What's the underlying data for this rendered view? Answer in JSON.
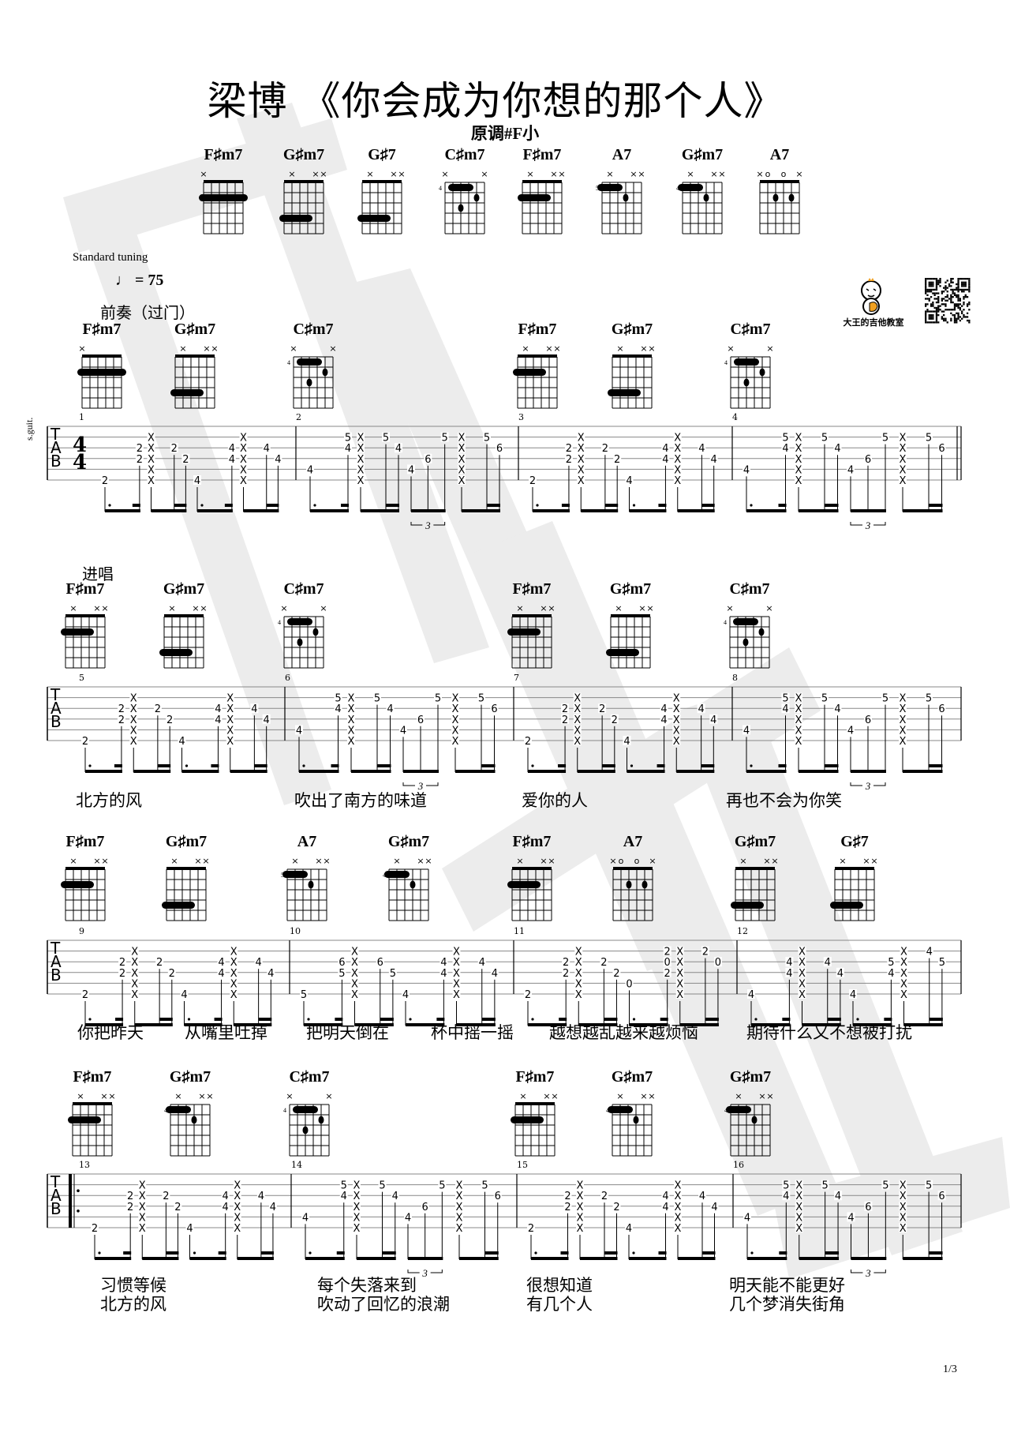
{
  "header": {
    "title": "梁博 《你会成为你想的那个人》",
    "key": "原调#F小",
    "tuning": "Standard tuning",
    "tempo_value": "= 75",
    "logo_text": "大王的吉他教室",
    "instrument": "s.guit.",
    "time_signature": [
      "4",
      "4"
    ]
  },
  "colors": {
    "ink": "#000000",
    "watermark": "#ececec",
    "logo_accent": "#f0a020"
  },
  "chord_chart": [
    {
      "name": "F♯m7",
      "marks": "x.....",
      "start": "",
      "barres": [
        [
          2,
          6,
          1
        ]
      ],
      "dots": []
    },
    {
      "name": "G♯m7",
      "marks": ".x..xx",
      "start": "",
      "barres": [
        [
          4,
          6,
          3
        ]
      ],
      "dots": []
    },
    {
      "name": "G♯7",
      "marks": ".x..xx",
      "start": "",
      "barres": [
        [
          4,
          6,
          3
        ]
      ],
      "dots": []
    },
    {
      "name": "C♯m7",
      "marks": "x....x",
      "start": "4",
      "barres": [
        [
          1,
          5,
          3
        ]
      ],
      "dots": [
        [
          2,
          2
        ],
        [
          3,
          4
        ]
      ]
    },
    {
      "name": "F♯m7",
      "marks": ".x..xx",
      "start": "",
      "barres": [
        [
          2,
          6,
          3
        ]
      ],
      "dots": []
    },
    {
      "name": "A7",
      "marks": ".x..xx",
      "start": "5",
      "barres": [
        [
          1,
          6,
          4
        ]
      ],
      "dots": [
        [
          2,
          3
        ]
      ]
    },
    {
      "name": "G♯m7",
      "marks": ".x..xx",
      "start": "4",
      "barres": [
        [
          1,
          6,
          4
        ]
      ],
      "dots": [
        [
          2,
          3
        ]
      ]
    },
    {
      "name": "A7",
      "marks": "xo.o.x",
      "start": "",
      "barres": [],
      "dots": [
        [
          2,
          4
        ],
        [
          2,
          2
        ]
      ]
    }
  ],
  "systems": [
    {
      "section": "前奏（过门）",
      "chords": [
        {
          "name": "F♯m7",
          "marks": "x.....",
          "start": "",
          "barres": [
            [
              2,
              6,
              1
            ]
          ],
          "dots": []
        },
        {
          "name": "G♯m7",
          "marks": ".x..xx",
          "start": "",
          "barres": [
            [
              4,
              6,
              3
            ]
          ],
          "dots": []
        },
        {
          "name": "C♯m7",
          "marks": "x....x",
          "start": "4",
          "barres": [
            [
              1,
              5,
              3
            ]
          ],
          "dots": [
            [
              2,
              2
            ],
            [
              3,
              4
            ]
          ]
        },
        {
          "name": "F♯m7",
          "marks": ".x..xx",
          "start": "",
          "barres": [
            [
              2,
              6,
              3
            ]
          ],
          "dots": []
        },
        {
          "name": "G♯m7",
          "marks": ".x..xx",
          "start": "",
          "barres": [
            [
              4,
              6,
              3
            ]
          ],
          "dots": []
        },
        {
          "name": "C♯m7",
          "marks": "x....x",
          "start": "4",
          "barres": [
            [
              1,
              5,
              3
            ]
          ],
          "dots": [
            [
              2,
              2
            ],
            [
              3,
              4
            ]
          ]
        }
      ],
      "measures": [
        {
          "number": "1",
          "notes": [
            "6:2",
            "3:2 4:2",
            "X",
            "3:2",
            "4:2",
            "6:4",
            "3:4 4:4",
            "X",
            "3:4",
            "4:4"
          ],
          "groups": [
            "2",
            "3",
            "2",
            "3"
          ]
        },
        {
          "number": "2",
          "notes": [
            "5:4",
            "2:5 3:4",
            "X",
            "2:5",
            "3:4",
            "5:4",
            "4:6",
            "2:5",
            "X",
            "2:5",
            "3:6"
          ],
          "groups": [
            "2",
            "3",
            "3t",
            "3"
          ]
        },
        {
          "number": "3",
          "notes": [
            "6:2",
            "3:2 4:2",
            "X",
            "3:2",
            "4:2",
            "6:4",
            "3:4 4:4",
            "X",
            "3:4",
            "4:4"
          ],
          "groups": [
            "2",
            "3",
            "2",
            "3"
          ]
        },
        {
          "number": "4",
          "notes": [
            "5:4",
            "2:5 3:4",
            "X",
            "2:5",
            "3:4",
            "5:4",
            "4:6",
            "2:5",
            "X",
            "2:5",
            "3:6"
          ],
          "groups": [
            "2",
            "3",
            "3t",
            "3"
          ]
        }
      ],
      "lyrics": []
    },
    {
      "section": "进唱",
      "chords": [
        {
          "name": "F♯m7",
          "marks": ".x..xx",
          "start": "",
          "barres": [
            [
              2,
              6,
              3
            ]
          ],
          "dots": []
        },
        {
          "name": "G♯m7",
          "marks": ".x..xx",
          "start": "",
          "barres": [
            [
              4,
              6,
              3
            ]
          ],
          "dots": []
        },
        {
          "name": "C♯m7",
          "marks": "x....x",
          "start": "4",
          "barres": [
            [
              1,
              5,
              3
            ]
          ],
          "dots": [
            [
              2,
              2
            ],
            [
              3,
              4
            ]
          ]
        },
        {
          "name": "F♯m7",
          "marks": ".x..xx",
          "start": "",
          "barres": [
            [
              2,
              6,
              3
            ]
          ],
          "dots": []
        },
        {
          "name": "G♯m7",
          "marks": ".x..xx",
          "start": "",
          "barres": [
            [
              4,
              6,
              3
            ]
          ],
          "dots": []
        },
        {
          "name": "C♯m7",
          "marks": "x....x",
          "start": "4",
          "barres": [
            [
              1,
              5,
              3
            ]
          ],
          "dots": [
            [
              2,
              2
            ],
            [
              3,
              4
            ]
          ]
        }
      ],
      "measures": [
        {
          "number": "5",
          "notes": [
            "6:2",
            "3:2 4:2",
            "X",
            "3:2",
            "4:2",
            "6:4",
            "3:4 4:4",
            "X",
            "3:4",
            "4:4"
          ],
          "groups": [
            "2",
            "3",
            "2",
            "3"
          ]
        },
        {
          "number": "6",
          "notes": [
            "5:4",
            "2:5 3:4",
            "X",
            "2:5",
            "3:4",
            "5:4",
            "4:6",
            "2:5",
            "X",
            "2:5",
            "3:6"
          ],
          "groups": [
            "2",
            "3",
            "3t",
            "3"
          ]
        },
        {
          "number": "7",
          "notes": [
            "6:2",
            "3:2 4:2",
            "X",
            "3:2",
            "4:2",
            "6:4",
            "3:4 4:4",
            "X",
            "3:4",
            "4:4"
          ],
          "groups": [
            "2",
            "3",
            "2",
            "3"
          ]
        },
        {
          "number": "8",
          "notes": [
            "5:4",
            "2:5 3:4",
            "X",
            "2:5",
            "3:4",
            "5:4",
            "4:6",
            "2:5",
            "X",
            "2:5",
            "3:6"
          ],
          "groups": [
            "2",
            "3",
            "3t",
            "3"
          ]
        }
      ],
      "lyrics": [
        [
          "北方的风"
        ],
        [
          "吹出了南方的味道"
        ],
        [
          "爱你的人"
        ],
        [
          "再也不会为你笑"
        ]
      ]
    },
    {
      "section": "",
      "chords": [
        {
          "name": "F♯m7",
          "marks": ".x..xx",
          "start": "",
          "barres": [
            [
              2,
              6,
              3
            ]
          ],
          "dots": []
        },
        {
          "name": "G♯m7",
          "marks": ".x..xx",
          "start": "",
          "barres": [
            [
              4,
              6,
              3
            ]
          ],
          "dots": []
        },
        {
          "name": "A7",
          "marks": ".x..xx",
          "start": "5",
          "barres": [
            [
              1,
              6,
              4
            ]
          ],
          "dots": [
            [
              2,
              3
            ]
          ]
        },
        {
          "name": "G♯m7",
          "marks": ".x..xx",
          "start": "4",
          "barres": [
            [
              1,
              6,
              4
            ]
          ],
          "dots": [
            [
              2,
              3
            ]
          ]
        },
        {
          "name": "F♯m7",
          "marks": ".x..xx",
          "start": "",
          "barres": [
            [
              2,
              6,
              3
            ]
          ],
          "dots": []
        },
        {
          "name": "A7",
          "marks": "xo.o.x",
          "start": "",
          "barres": [],
          "dots": [
            [
              2,
              4
            ],
            [
              2,
              2
            ]
          ]
        },
        {
          "name": "G♯m7",
          "marks": ".x..xx",
          "start": "",
          "barres": [
            [
              4,
              6,
              3
            ]
          ],
          "dots": []
        },
        {
          "name": "G♯7",
          "marks": ".x..xx",
          "start": "",
          "barres": [
            [
              4,
              6,
              3
            ]
          ],
          "dots": []
        }
      ],
      "measures": [
        {
          "number": "9",
          "notes": [
            "6:2",
            "3:2 4:2",
            "X",
            "3:2",
            "4:2",
            "6:4",
            "3:4 4:4",
            "X",
            "3:4",
            "4:4"
          ],
          "groups": [
            "2",
            "3",
            "2",
            "3"
          ]
        },
        {
          "number": "10",
          "notes": [
            "6:5",
            "3:6 4:5",
            "X",
            "3:6",
            "4:5",
            "6:4",
            "3:4 4:4",
            "X",
            "3:4",
            "4:4"
          ],
          "groups": [
            "2",
            "3",
            "2",
            "3"
          ]
        },
        {
          "number": "11",
          "notes": [
            "6:2",
            "3:2 4:2",
            "X",
            "3:2",
            "4:2",
            "5:0",
            "2:2 3:0 4:2",
            "X",
            "2:2",
            "3:0"
          ],
          "groups": [
            "2",
            "3",
            "2",
            "3"
          ]
        },
        {
          "number": "12",
          "notes": [
            "6:4",
            "3:4 4:4",
            "X",
            "3:4",
            "4:4",
            "6:4",
            "3:5 4:4",
            "X",
            "2:4",
            "3:5"
          ],
          "groups": [
            "2",
            "3",
            "2",
            "3"
          ]
        }
      ],
      "lyrics": [
        [
          "你把昨天"
        ],
        [
          "从嘴里吐掉"
        ],
        [
          "把明天倒在"
        ],
        [
          "杯中摇一摇"
        ],
        [
          "越想越乱越来越烦恼"
        ],
        [
          "期待什么又不想被打扰"
        ]
      ]
    },
    {
      "section": "",
      "chords": [
        {
          "name": "F♯m7",
          "marks": ".x..xx",
          "start": "",
          "barres": [
            [
              2,
              6,
              3
            ]
          ],
          "dots": []
        },
        {
          "name": "G♯m7",
          "marks": ".x..xx",
          "start": "4",
          "barres": [
            [
              1,
              6,
              4
            ]
          ],
          "dots": [
            [
              2,
              3
            ]
          ]
        },
        {
          "name": "C♯m7",
          "marks": "x....x",
          "start": "4",
          "barres": [
            [
              1,
              5,
              3
            ]
          ],
          "dots": [
            [
              2,
              2
            ],
            [
              3,
              4
            ]
          ]
        },
        {
          "name": "F♯m7",
          "marks": ".x..xx",
          "start": "",
          "barres": [
            [
              2,
              6,
              3
            ]
          ],
          "dots": []
        },
        {
          "name": "G♯m7",
          "marks": ".x..xx",
          "start": "4",
          "barres": [
            [
              1,
              6,
              4
            ]
          ],
          "dots": [
            [
              2,
              3
            ]
          ]
        },
        {
          "name": "G♯m7",
          "marks": ".x..xx",
          "start": "4",
          "barres": [
            [
              1,
              6,
              4
            ]
          ],
          "dots": [
            [
              2,
              3
            ]
          ]
        }
      ],
      "measures": [
        {
          "number": "13",
          "notes": [
            "6:2",
            "3:2 4:2",
            "X",
            "3:2",
            "4:2",
            "6:4",
            "3:4 4:4",
            "X",
            "3:4",
            "4:4"
          ],
          "groups": [
            "2",
            "3",
            "2",
            "3"
          ]
        },
        {
          "number": "14",
          "notes": [
            "5:4",
            "2:5 3:4",
            "X",
            "2:5",
            "3:4",
            "5:4",
            "4:6",
            "2:5",
            "X",
            "2:5",
            "3:6"
          ],
          "groups": [
            "2",
            "3",
            "3t",
            "3"
          ]
        },
        {
          "number": "15",
          "notes": [
            "6:2",
            "3:2 4:2",
            "X",
            "3:2",
            "4:2",
            "6:4",
            "3:4 4:4",
            "X",
            "3:4",
            "4:4"
          ],
          "groups": [
            "2",
            "3",
            "2",
            "3"
          ]
        },
        {
          "number": "16",
          "notes": [
            "5:4",
            "2:5 3:4",
            "X",
            "2:5",
            "3:4",
            "5:4",
            "4:6",
            "2:5",
            "X",
            "2:5",
            "3:6"
          ],
          "groups": [
            "2",
            "3",
            "3t",
            "3"
          ]
        }
      ],
      "lyrics": [
        [
          "习惯等候",
          "北方的风"
        ],
        [
          "每个失落来到",
          "吹动了回忆的浪潮"
        ],
        [
          "很想知道",
          "有几个人"
        ],
        [
          "明天能不能更好",
          "几个梦消失街角"
        ]
      ]
    }
  ],
  "footer": {
    "page": "1/3"
  }
}
